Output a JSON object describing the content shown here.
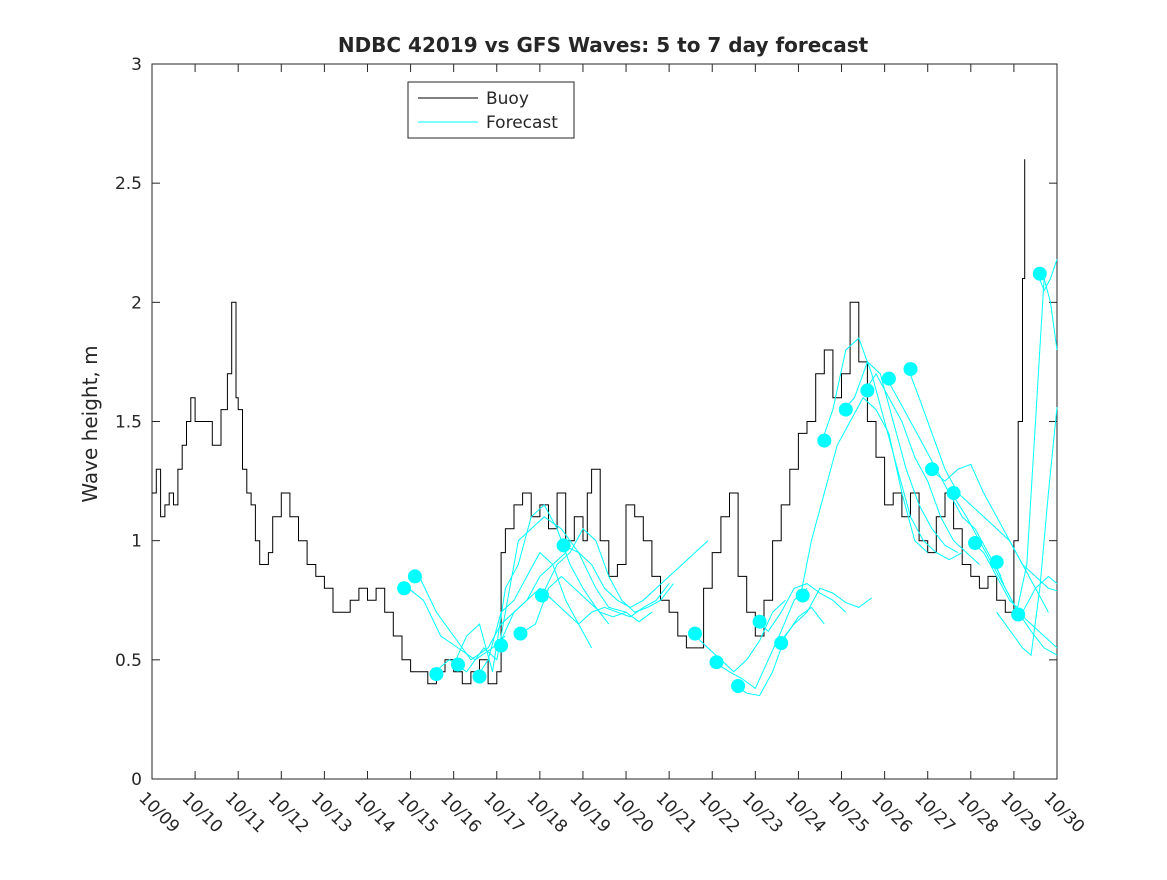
{
  "chart_data": {
    "type": "line",
    "title": "NDBC 42019 vs GFS Waves: 5 to 7 day forecast",
    "xlabel": "",
    "ylabel": "Wave height, m",
    "xlim": [
      0,
      21
    ],
    "ylim": [
      0,
      3
    ],
    "yticks": [
      0,
      0.5,
      1,
      1.5,
      2,
      2.5,
      3
    ],
    "ytick_labels": [
      "0",
      "0.5",
      "1",
      "1.5",
      "2",
      "2.5",
      "3"
    ],
    "xtick_labels": [
      "10/09",
      "10/10",
      "10/11",
      "10/12",
      "10/13",
      "10/14",
      "10/15",
      "10/16",
      "10/17",
      "10/18",
      "10/19",
      "10/20",
      "10/21",
      "10/22",
      "10/23",
      "10/24",
      "10/25",
      "10/26",
      "10/27",
      "10/28",
      "10/29",
      "10/30"
    ],
    "colors": {
      "buoy": "#000000",
      "forecast": "#00ffff",
      "axis": "#262626"
    },
    "legend": {
      "position": "top-center",
      "entries": [
        {
          "label": "Buoy",
          "series": "buoy"
        },
        {
          "label": "Forecast",
          "series": "forecast"
        }
      ]
    },
    "series": [
      {
        "name": "Buoy",
        "key": "buoy",
        "x": [
          0.0,
          0.1,
          0.2,
          0.3,
          0.4,
          0.5,
          0.6,
          0.7,
          0.8,
          0.9,
          1.0,
          1.2,
          1.4,
          1.6,
          1.75,
          1.85,
          1.95,
          2.0,
          2.1,
          2.2,
          2.3,
          2.4,
          2.5,
          2.6,
          2.7,
          2.8,
          3.0,
          3.2,
          3.4,
          3.6,
          3.8,
          4.0,
          4.2,
          4.4,
          4.6,
          4.8,
          5.0,
          5.2,
          5.4,
          5.6,
          5.8,
          6.0,
          6.2,
          6.4,
          6.6,
          6.8,
          7.0,
          7.2,
          7.4,
          7.6,
          7.8,
          8.0,
          8.1,
          8.2,
          8.4,
          8.6,
          8.8,
          9.0,
          9.2,
          9.4,
          9.6,
          9.8,
          10.0,
          10.1,
          10.2,
          10.4,
          10.6,
          10.8,
          11.0,
          11.2,
          11.4,
          11.6,
          11.8,
          12.0,
          12.2,
          12.4,
          12.6,
          12.8,
          13.0,
          13.2,
          13.4,
          13.6,
          13.8,
          14.0,
          14.2,
          14.4,
          14.6,
          14.8,
          15.0,
          15.2,
          15.4,
          15.6,
          15.8,
          16.0,
          16.2,
          16.4,
          16.6,
          16.8,
          17.0,
          17.2,
          17.4,
          17.6,
          17.8,
          18.0,
          18.2,
          18.4,
          18.6,
          18.8,
          19.0,
          19.2,
          19.4,
          19.6,
          19.8,
          20.0,
          20.1,
          20.2,
          20.25
        ],
        "values": [
          1.2,
          1.3,
          1.1,
          1.15,
          1.2,
          1.15,
          1.3,
          1.4,
          1.5,
          1.6,
          1.5,
          1.5,
          1.4,
          1.55,
          1.7,
          2.0,
          1.6,
          1.55,
          1.3,
          1.2,
          1.15,
          1.0,
          0.9,
          0.9,
          0.95,
          1.1,
          1.2,
          1.1,
          1.0,
          0.9,
          0.85,
          0.8,
          0.7,
          0.7,
          0.75,
          0.8,
          0.75,
          0.8,
          0.7,
          0.6,
          0.5,
          0.45,
          0.45,
          0.4,
          0.45,
          0.5,
          0.45,
          0.4,
          0.45,
          0.5,
          0.4,
          0.45,
          0.95,
          1.05,
          1.15,
          1.2,
          1.1,
          1.15,
          1.05,
          1.2,
          1.0,
          1.1,
          1.0,
          1.2,
          1.3,
          1.0,
          0.85,
          0.9,
          1.15,
          1.1,
          1.0,
          0.85,
          0.75,
          0.7,
          0.6,
          0.55,
          0.55,
          0.8,
          0.95,
          1.1,
          1.2,
          0.85,
          0.7,
          0.6,
          0.75,
          1.0,
          1.15,
          1.3,
          1.45,
          1.5,
          1.7,
          1.8,
          1.6,
          1.7,
          2.0,
          1.75,
          1.5,
          1.35,
          1.15,
          1.2,
          1.1,
          1.2,
          1.0,
          0.95,
          1.1,
          1.2,
          1.05,
          0.9,
          0.85,
          0.8,
          0.85,
          0.75,
          0.7,
          1.0,
          1.5,
          2.1,
          2.6
        ]
      },
      {
        "name": "Forecast",
        "key": "forecast",
        "lines": [
          {
            "x": [
              5.95,
              6.3,
              6.7,
              7.1,
              7.5,
              7.9,
              8.2
            ],
            "values": [
              0.8,
              0.75,
              0.6,
              0.55,
              0.5,
              0.55,
              0.6
            ]
          },
          {
            "x": [
              6.2,
              6.6,
              7.0,
              7.4,
              7.8,
              8.1,
              8.4,
              8.7,
              9.0,
              9.3,
              9.6
            ],
            "values": [
              0.85,
              0.7,
              0.6,
              0.5,
              0.55,
              0.65,
              0.7,
              0.75,
              0.85,
              0.9,
              0.95
            ]
          },
          {
            "x": [
              6.5,
              6.9,
              7.3,
              7.7,
              8.0,
              8.2,
              8.5,
              8.8,
              9.1,
              9.5,
              9.9,
              10.3,
              10.6,
              11.0
            ],
            "values": [
              0.44,
              0.5,
              0.45,
              0.55,
              0.5,
              0.7,
              1.0,
              1.05,
              1.1,
              1.05,
              0.95,
              0.8,
              0.72,
              0.7
            ]
          },
          {
            "x": [
              7.0,
              7.3,
              7.6,
              7.9,
              8.2,
              8.5,
              8.8,
              9.1,
              9.4,
              9.7,
              10.0,
              10.3,
              10.6
            ],
            "values": [
              0.48,
              0.6,
              0.65,
              0.45,
              0.8,
              0.9,
              1.1,
              1.15,
              1.05,
              0.9,
              0.8,
              0.72,
              0.65
            ]
          },
          {
            "x": [
              7.55,
              7.8,
              8.1,
              8.4,
              8.7,
              9.0,
              9.3,
              9.6,
              9.9,
              10.2
            ],
            "values": [
              0.43,
              0.5,
              0.7,
              0.75,
              0.85,
              0.95,
              0.9,
              0.75,
              0.65,
              0.55
            ]
          },
          {
            "x": [
              8.05,
              8.4,
              8.7,
              9.0,
              9.3,
              9.6,
              9.9,
              10.2,
              10.5,
              10.8,
              11.1,
              11.4,
              11.7,
              12.0
            ],
            "values": [
              0.56,
              0.7,
              0.75,
              0.8,
              0.75,
              0.7,
              0.65,
              0.7,
              0.72,
              0.7,
              0.68,
              0.72,
              0.75,
              0.82
            ]
          },
          {
            "x": [
              8.55,
              8.9,
              9.2,
              9.5,
              9.8,
              10.1,
              10.4,
              10.7,
              11.0,
              11.3,
              11.6
            ],
            "values": [
              0.61,
              0.65,
              0.8,
              0.85,
              0.8,
              0.75,
              0.7,
              0.68,
              0.7,
              0.66,
              0.7
            ]
          },
          {
            "x": [
              9.05,
              9.4,
              9.7,
              10.0,
              10.3,
              10.6,
              10.9,
              11.2,
              11.5,
              11.8,
              12.1
            ],
            "values": [
              0.77,
              0.9,
              0.95,
              1.05,
              1.0,
              0.85,
              0.75,
              0.7,
              0.72,
              0.75,
              0.82
            ]
          },
          {
            "x": [
              9.55,
              9.9,
              10.2,
              10.5,
              10.8,
              11.1,
              11.4,
              11.7,
              12.0,
              12.3,
              12.6,
              12.9
            ],
            "values": [
              0.98,
              0.95,
              0.9,
              0.8,
              0.75,
              0.72,
              0.75,
              0.8,
              0.85,
              0.9,
              0.95,
              1.0
            ]
          },
          {
            "x": [
              12.55,
              12.9,
              13.2,
              13.5,
              13.8,
              14.1,
              14.4,
              14.7
            ],
            "values": [
              0.61,
              0.55,
              0.5,
              0.45,
              0.5,
              0.58,
              0.7,
              0.75
            ]
          },
          {
            "x": [
              13.05,
              13.4,
              13.7,
              14.0,
              14.3,
              14.6,
              14.9,
              15.2
            ],
            "values": [
              0.49,
              0.45,
              0.42,
              0.38,
              0.5,
              0.62,
              0.75,
              0.8
            ]
          },
          {
            "x": [
              13.55,
              13.8,
              14.1,
              14.4,
              14.7,
              15.0,
              15.3,
              15.6
            ],
            "values": [
              0.39,
              0.36,
              0.35,
              0.45,
              0.6,
              0.68,
              0.72,
              0.65
            ]
          },
          {
            "x": [
              14.05,
              14.3,
              14.6,
              14.9,
              15.2,
              15.5,
              15.8,
              16.1
            ],
            "values": [
              0.66,
              0.62,
              0.7,
              0.8,
              0.82,
              0.78,
              0.75,
              0.7
            ]
          },
          {
            "x": [
              14.55,
              14.9,
              15.2,
              15.5,
              15.8,
              16.1,
              16.4,
              16.7
            ],
            "values": [
              0.57,
              0.65,
              0.7,
              0.8,
              0.78,
              0.74,
              0.72,
              0.76
            ]
          },
          {
            "x": [
              15.05,
              15.3,
              15.6,
              15.9,
              16.2,
              16.5,
              16.8,
              17.1,
              17.4,
              17.7,
              18.0
            ],
            "values": [
              0.77,
              1.0,
              1.2,
              1.4,
              1.5,
              1.6,
              1.55,
              1.45,
              1.2,
              1.0,
              0.95
            ]
          },
          {
            "x": [
              15.55,
              15.8,
              16.1,
              16.4,
              16.7,
              17.0,
              17.3,
              17.6,
              17.9,
              18.2,
              18.5,
              18.8
            ],
            "values": [
              1.42,
              1.55,
              1.8,
              1.85,
              1.7,
              1.5,
              1.3,
              1.1,
              1.0,
              0.95,
              0.92,
              0.95
            ]
          },
          {
            "x": [
              16.05,
              16.3,
              16.6,
              16.9,
              17.2,
              17.5,
              17.8,
              18.1,
              18.4,
              18.7
            ],
            "values": [
              1.55,
              1.6,
              1.75,
              1.7,
              1.5,
              1.3,
              1.15,
              1.05,
              0.98,
              0.95
            ]
          },
          {
            "x": [
              16.55,
              16.8,
              17.1,
              17.4,
              17.7,
              18.0,
              18.3,
              18.6,
              18.9,
              19.2
            ],
            "values": [
              1.63,
              1.7,
              1.6,
              1.5,
              1.35,
              1.25,
              1.1,
              1.0,
              0.95,
              0.9
            ]
          },
          {
            "x": [
              17.05,
              17.3,
              17.6,
              17.9,
              18.2,
              18.5,
              18.8,
              19.1,
              19.4,
              19.7
            ],
            "values": [
              1.68,
              1.6,
              1.5,
              1.4,
              1.3,
              1.2,
              1.1,
              1.05,
              0.95,
              0.85
            ]
          },
          {
            "x": [
              17.55,
              17.8,
              18.1,
              18.4,
              18.7,
              19.0,
              19.3,
              19.6,
              19.9,
              20.2,
              20.5,
              20.8
            ],
            "values": [
              1.72,
              1.6,
              1.45,
              1.3,
              1.2,
              1.15,
              1.1,
              1.05,
              1.0,
              0.9,
              0.8,
              0.7
            ]
          },
          {
            "x": [
              18.05,
              18.4,
              18.7,
              19.0,
              19.3,
              19.6,
              19.9,
              20.2,
              20.5,
              20.8,
              21.0
            ],
            "values": [
              1.3,
              1.25,
              1.3,
              1.32,
              1.2,
              1.1,
              1.0,
              0.9,
              0.85,
              0.8,
              0.79
            ]
          },
          {
            "x": [
              18.55,
              18.9,
              19.2,
              19.5,
              19.8,
              20.1,
              20.4,
              20.7,
              21.0
            ],
            "values": [
              1.2,
              1.1,
              1.0,
              0.9,
              0.8,
              0.7,
              0.62,
              0.55,
              0.52
            ]
          },
          {
            "x": [
              19.05,
              19.3,
              19.6,
              19.9,
              20.2,
              20.5,
              20.8,
              21.0
            ],
            "values": [
              0.99,
              0.95,
              0.85,
              0.75,
              0.7,
              0.8,
              0.85,
              0.82
            ]
          },
          {
            "x": [
              19.55,
              19.8,
              20.1,
              20.4,
              20.7,
              21.0
            ],
            "values": [
              0.91,
              0.8,
              0.7,
              0.65,
              0.6,
              0.55
            ]
          },
          {
            "x": [
              20.05,
              20.3,
              20.5,
              20.7,
              20.85,
              21.0
            ],
            "values": [
              0.69,
              0.9,
              1.5,
              2.1,
              2.0,
              1.8
            ]
          },
          {
            "x": [
              20.55,
              20.7,
              20.85,
              21.0
            ],
            "values": [
              2.12,
              2.05,
              2.1,
              2.18
            ]
          },
          {
            "x": [
              19.6,
              19.8,
              20.0,
              20.2,
              20.4,
              20.6,
              20.8,
              21.0
            ],
            "values": [
              0.7,
              0.65,
              0.6,
              0.55,
              0.52,
              0.8,
              1.2,
              1.56
            ]
          }
        ],
        "markers": {
          "x": [
            5.85,
            6.1,
            6.6,
            7.1,
            7.6,
            8.1,
            8.55,
            9.05,
            9.55,
            12.6,
            13.1,
            13.6,
            14.1,
            14.6,
            15.1,
            15.6,
            16.1,
            16.6,
            17.1,
            17.6,
            18.1,
            18.6,
            19.1,
            19.6,
            20.1,
            20.6
          ],
          "values": [
            0.8,
            0.85,
            0.44,
            0.48,
            0.43,
            0.56,
            0.61,
            0.77,
            0.98,
            0.61,
            0.49,
            0.39,
            0.66,
            0.57,
            0.77,
            1.42,
            1.55,
            1.63,
            1.68,
            1.72,
            1.3,
            1.2,
            0.99,
            0.91,
            0.69,
            2.12
          ]
        }
      }
    ]
  }
}
